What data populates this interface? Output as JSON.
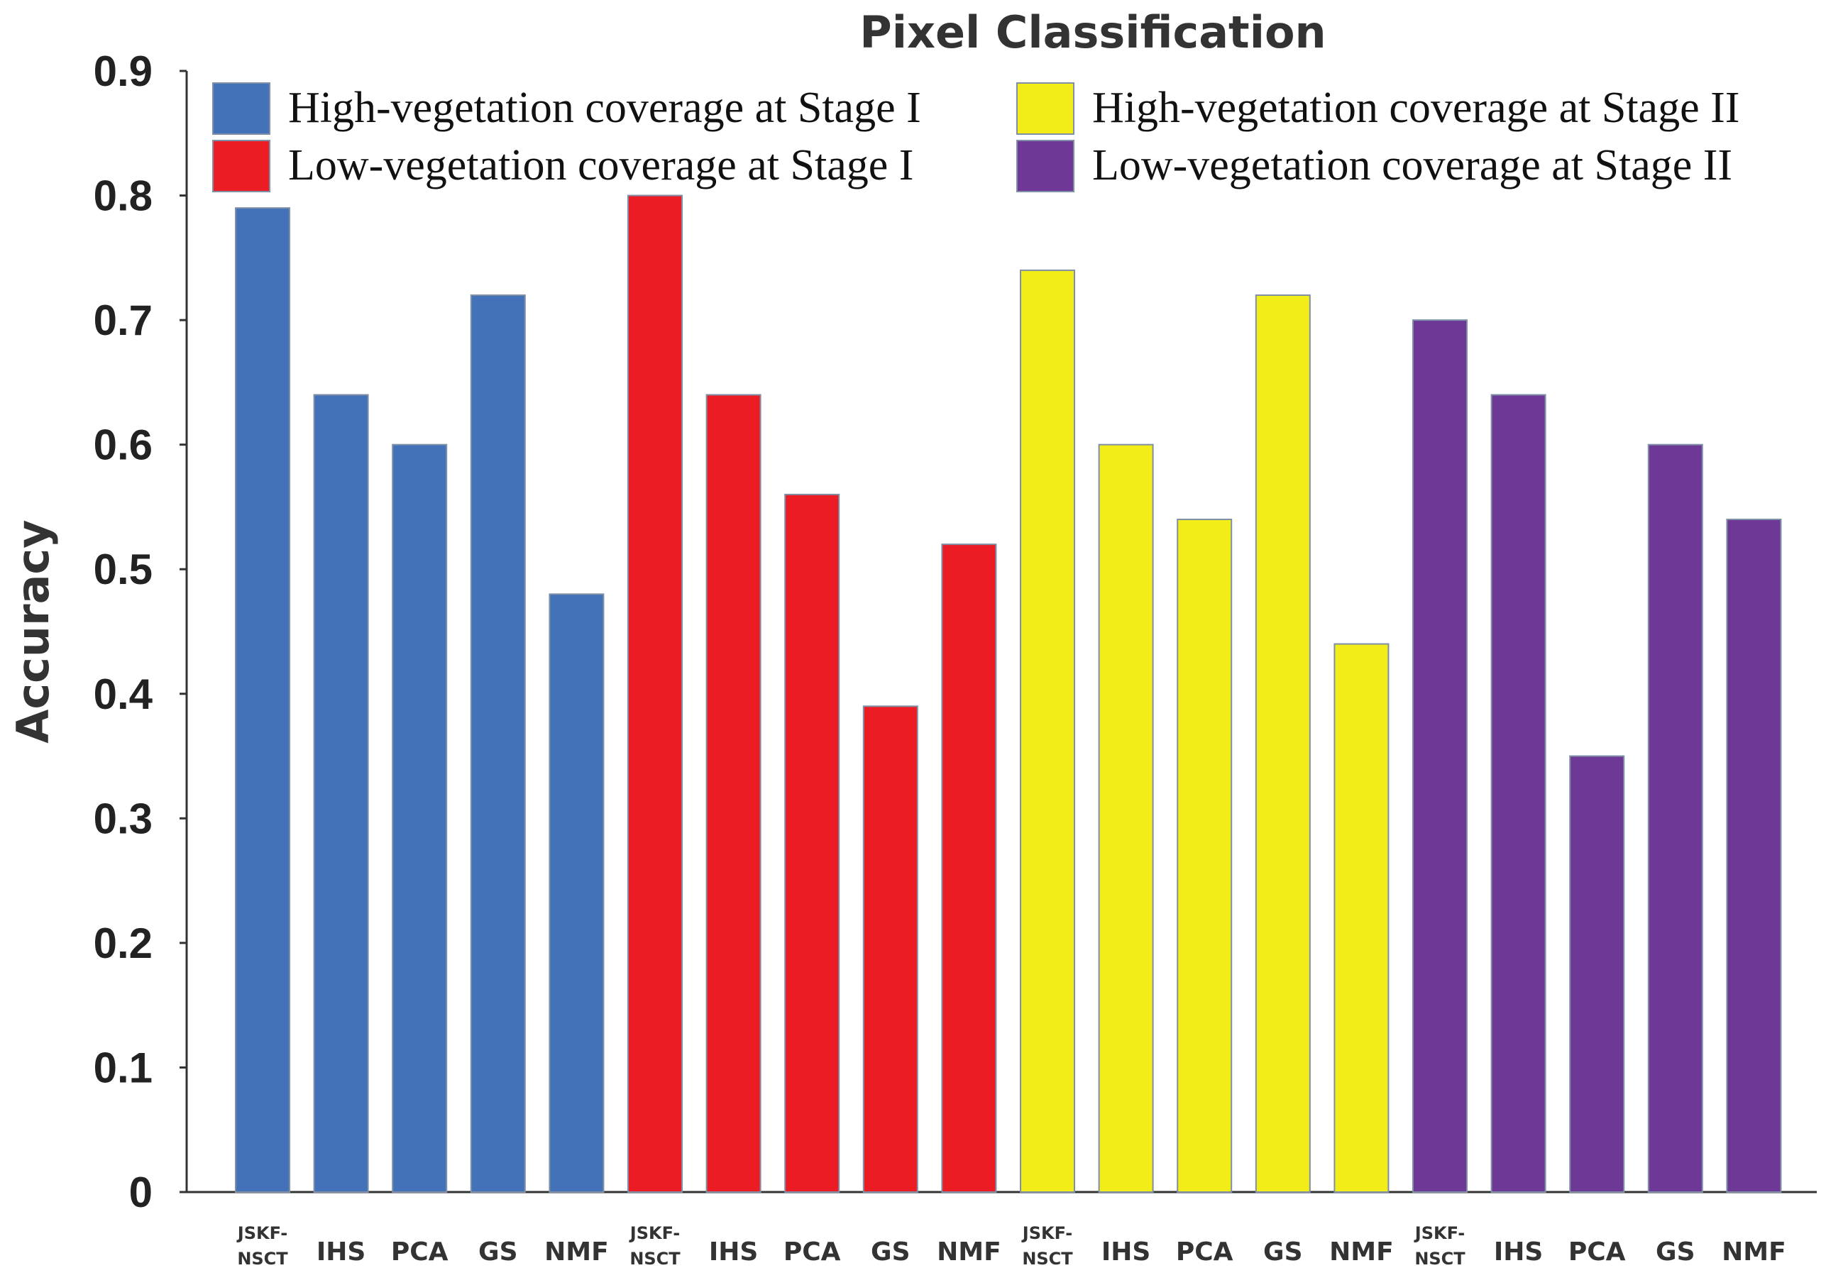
{
  "chart_data": {
    "type": "bar",
    "title": "Pixel Classification",
    "xlabel": "",
    "ylabel": "Accuracy",
    "ylim": [
      0,
      0.9
    ],
    "yticks": [
      "0",
      "0.1",
      "0.2",
      "0.3",
      "0.4",
      "0.5",
      "0.6",
      "0.7",
      "0.8",
      "0.9"
    ],
    "grid": false,
    "legend_position": "top",
    "categories": [
      "JSKF-NSCT",
      "IHS",
      "PCA",
      "GS",
      "NMF"
    ],
    "series": [
      {
        "name": "High-vegetation coverage at Stage I",
        "color": "#4472b8",
        "values": [
          0.79,
          0.64,
          0.6,
          0.72,
          0.48
        ],
        "labels": [
          "JSKF-NSCT",
          "IHS",
          "PCA",
          "GS",
          "NMF"
        ]
      },
      {
        "name": "Low-vegetation coverage at Stage I",
        "color": "#ec1c24",
        "values": [
          0.8,
          0.64,
          0.56,
          0.39,
          0.52
        ],
        "labels": [
          "JSKF-NSCT",
          "IHS",
          "PCA",
          "GS",
          "NMF"
        ]
      },
      {
        "name": "High-vegetation coverage at Stage II",
        "color": "#f2ec18",
        "values": [
          0.74,
          0.6,
          0.54,
          0.72,
          0.44
        ],
        "labels": [
          "JSKF-NSCT",
          "IHS",
          "PCA",
          "GS",
          "NMF"
        ]
      },
      {
        "name": "Low-vegetation coverage at Stage II",
        "color": "#6e3996",
        "values": [
          0.7,
          0.64,
          0.35,
          0.6,
          0.54
        ],
        "labels": [
          "JSKF-NSCT",
          "IHS",
          "PCA",
          "GS",
          "NMF"
        ]
      }
    ]
  }
}
